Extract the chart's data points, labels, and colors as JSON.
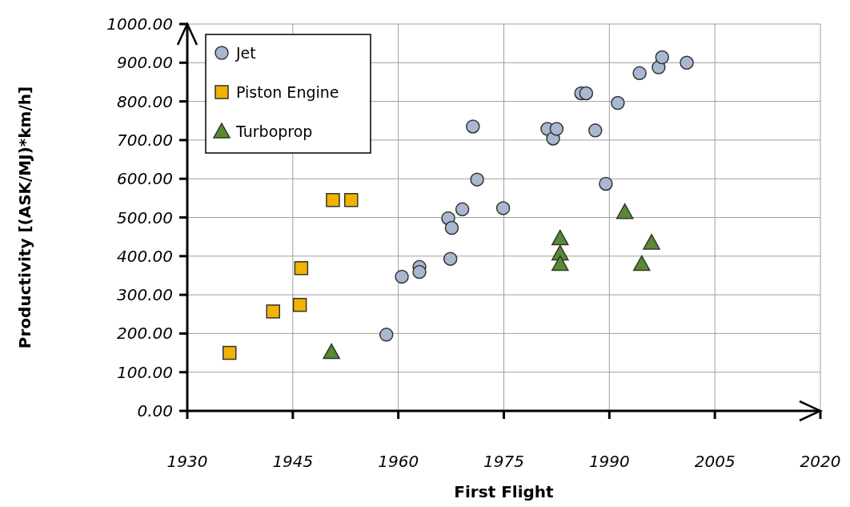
{
  "chart_data": {
    "type": "scatter",
    "xlabel": "First Flight",
    "ylabel": "Productivity [(ASK/MJ)*km/h]",
    "xlim": [
      1930,
      2020
    ],
    "xticks": [
      1930,
      1945,
      1960,
      1975,
      1990,
      2005,
      2020
    ],
    "ylim": [
      0,
      1000
    ],
    "yticks": [
      {
        "value": 0,
        "label": "0.00"
      },
      {
        "value": 100,
        "label": "100.00"
      },
      {
        "value": 200,
        "label": "200.00"
      },
      {
        "value": 300,
        "label": "300.00"
      },
      {
        "value": 400,
        "label": "400.00"
      },
      {
        "value": 500,
        "label": "500.00"
      },
      {
        "value": 600,
        "label": "600.00"
      },
      {
        "value": 700,
        "label": "700.00"
      },
      {
        "value": 800,
        "label": "800.00"
      },
      {
        "value": 900,
        "label": "900.00"
      },
      {
        "value": 1000,
        "label": "1000.00"
      }
    ],
    "grid": true,
    "legend": "top left",
    "series": [
      {
        "name": "Jet",
        "color": "#a9b8d0",
        "marker": "circle",
        "x": [
          1958.3,
          1960.5,
          1963,
          1963,
          1967.4,
          1967.1,
          1967.6,
          1969.1,
          1971.2,
          1970.6,
          1974.9,
          1981.2,
          1982,
          1982.5,
          1986,
          1986.7,
          1988,
          1989.5,
          1991.2,
          1994.3,
          1997,
          1997.5,
          2001
        ],
        "values": [
          197,
          347,
          372,
          359,
          393,
          498,
          473,
          521,
          598,
          735,
          524,
          729,
          704,
          729,
          821,
          821,
          725,
          587,
          796,
          873,
          888,
          914,
          900
        ]
      },
      {
        "name": "Piston Engine",
        "color": "#f0b400",
        "marker": "square",
        "x": [
          1936,
          1942.2,
          1946,
          1946.2,
          1950.7,
          1953.3
        ],
        "values": [
          150,
          257,
          274,
          369,
          545,
          545
        ]
      },
      {
        "name": "Turboprop",
        "color": "#5a8a30",
        "marker": "triangle",
        "x": [
          1950.5,
          1983,
          1983,
          1983,
          1992.2,
          1996,
          1994.6
        ],
        "values": [
          152,
          446,
          407,
          380,
          514,
          435,
          380
        ]
      }
    ]
  }
}
